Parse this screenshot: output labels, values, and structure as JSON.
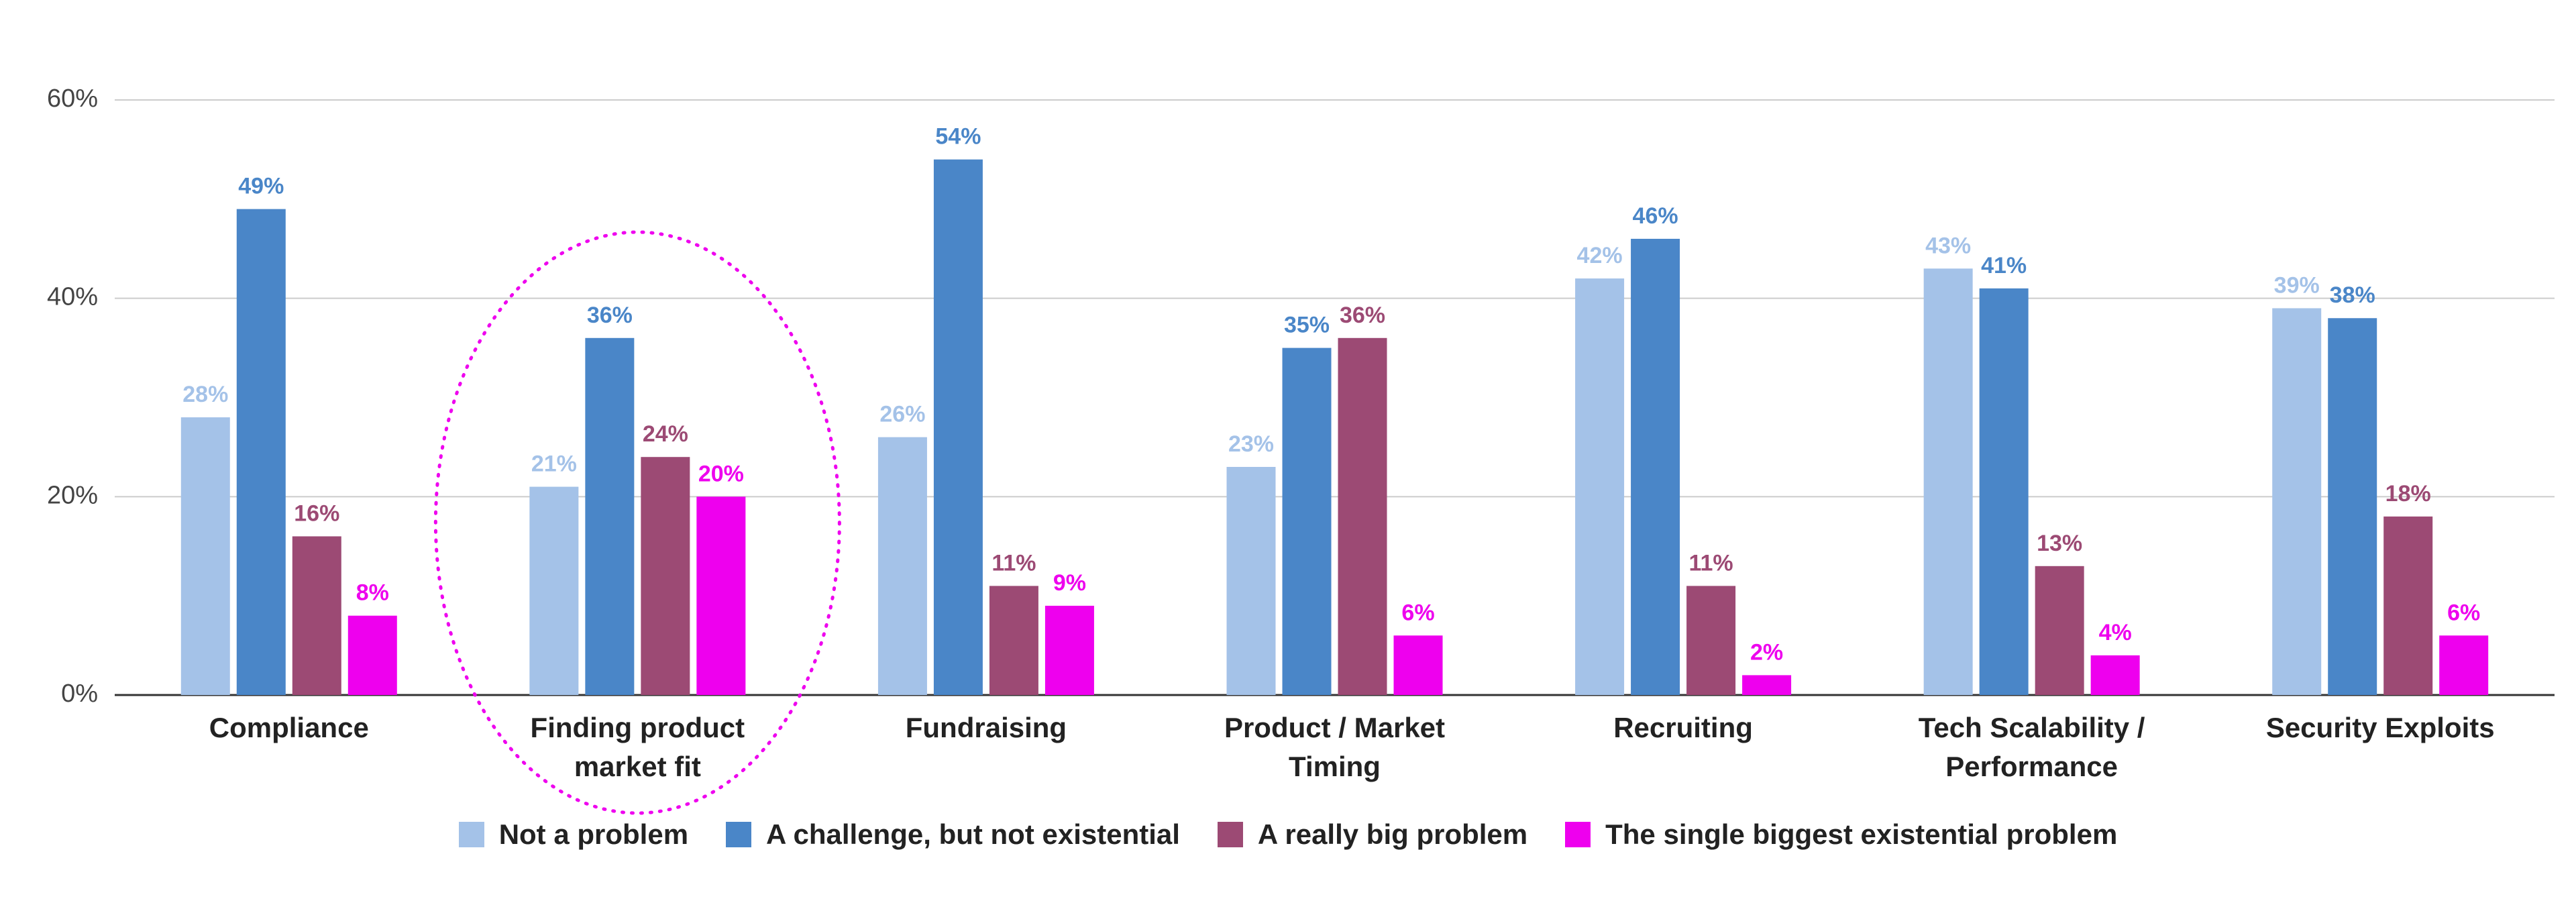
{
  "chart_data": {
    "type": "bar",
    "categories": [
      "Compliance",
      "Finding product market fit",
      "Fundraising",
      "Product / Market Timing",
      "Recruiting",
      "Tech Scalability / Performance",
      "Security Exploits"
    ],
    "series": [
      {
        "name": "Not a problem",
        "color": "#a4c2e8",
        "values": [
          28,
          21,
          26,
          23,
          42,
          43,
          39
        ],
        "value_labels": [
          "28%",
          "21%",
          "26%",
          "23%",
          "42%",
          "43%",
          "39%"
        ]
      },
      {
        "name": "A challenge, but not existential",
        "color": "#4a86c8",
        "values": [
          49,
          36,
          54,
          35,
          46,
          41,
          38
        ],
        "value_labels": [
          "49%",
          "36%",
          "54%",
          "35%",
          "46%",
          "41%",
          "38%"
        ]
      },
      {
        "name": "A really big problem",
        "color": "#9c4a74",
        "values": [
          16,
          24,
          11,
          36,
          11,
          13,
          18
        ],
        "value_labels": [
          "16%",
          "24%",
          "11%",
          "36%",
          "11%",
          "13%",
          "18%"
        ]
      },
      {
        "name": "The single biggest existential problem",
        "color": "#ee00ee",
        "values": [
          8,
          20,
          9,
          6,
          2,
          4,
          6
        ],
        "value_labels": [
          "8%",
          "20%",
          "9%",
          "6%",
          "2%",
          "4%",
          "6%"
        ]
      }
    ],
    "ylim": [
      0,
      60
    ],
    "yticks": [
      {
        "value": 0,
        "label": "0%"
      },
      {
        "value": 20,
        "label": "20%"
      },
      {
        "value": 40,
        "label": "40%"
      },
      {
        "value": 60,
        "label": "60%"
      }
    ],
    "grid": true
  }
}
